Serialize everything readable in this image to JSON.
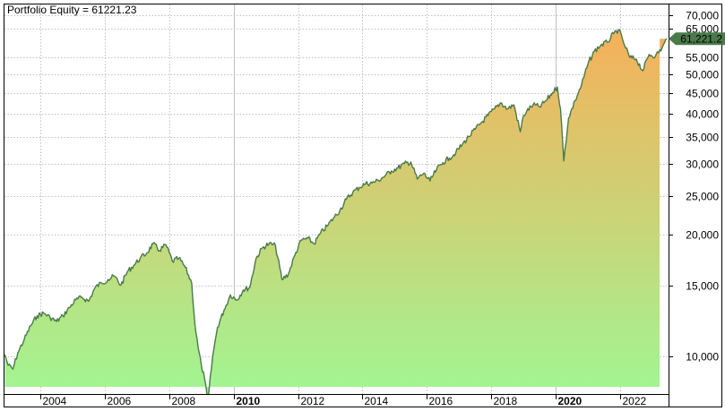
{
  "title": "Portfolio Equity = 61221.23",
  "last_value_label": "61,221.2",
  "colors": {
    "line": "#4a7a4a",
    "fill_top": "#f6b05a",
    "fill_bottom": "#9ff794",
    "grid": "#c0c0c0",
    "frame": "#000000",
    "marker": "#4a7a4a"
  },
  "chart_data": {
    "type": "area",
    "title": "Portfolio Equity = 61221.23",
    "xlabel": "",
    "ylabel": "",
    "y_scale": "log",
    "ylim": [
      8000,
      72000
    ],
    "grid": true,
    "y_ticks": [
      10000,
      15000,
      20000,
      25000,
      30000,
      35000,
      40000,
      45000,
      50000,
      55000,
      65000,
      70000
    ],
    "y_tick_labels": [
      "10,000",
      "15,000",
      "20,000",
      "25,000",
      "30,000",
      "35,000",
      "40,000",
      "45,000",
      "50,000",
      "55,000",
      "65,000",
      "70,000"
    ],
    "x_ticks": [
      2004,
      2006,
      2008,
      2010,
      2012,
      2014,
      2016,
      2018,
      2020,
      2022
    ],
    "x_tick_labels": [
      "2004",
      "2006",
      "2008",
      "2010",
      "2012",
      "2014",
      "2016",
      "2018",
      "2020",
      "2022"
    ],
    "x_bold_ticks": [
      "2010",
      "2020"
    ],
    "last_value": 61221.23,
    "series": [
      {
        "name": "Portfolio Equity",
        "x": [
          2002.9,
          2003.0,
          2003.15,
          2003.3,
          2003.5,
          2003.7,
          2003.9,
          2004.1,
          2004.3,
          2004.5,
          2004.7,
          2004.9,
          2005.1,
          2005.3,
          2005.5,
          2005.7,
          2005.9,
          2006.1,
          2006.3,
          2006.5,
          2006.7,
          2006.9,
          2007.1,
          2007.3,
          2007.5,
          2007.7,
          2007.9,
          2008.1,
          2008.3,
          2008.5,
          2008.7,
          2008.8,
          2008.9,
          2009.0,
          2009.1,
          2009.2,
          2009.35,
          2009.5,
          2009.7,
          2009.9,
          2010.1,
          2010.3,
          2010.5,
          2010.7,
          2010.9,
          2011.1,
          2011.3,
          2011.5,
          2011.7,
          2011.9,
          2012.1,
          2012.3,
          2012.5,
          2012.7,
          2012.9,
          2013.1,
          2013.3,
          2013.5,
          2013.7,
          2013.9,
          2014.1,
          2014.3,
          2014.5,
          2014.7,
          2014.9,
          2015.1,
          2015.3,
          2015.5,
          2015.7,
          2015.9,
          2016.1,
          2016.3,
          2016.5,
          2016.7,
          2016.9,
          2017.1,
          2017.3,
          2017.5,
          2017.7,
          2017.9,
          2018.1,
          2018.3,
          2018.5,
          2018.7,
          2018.9,
          2019.0,
          2019.1,
          2019.3,
          2019.5,
          2019.7,
          2019.9,
          2020.05,
          2020.15,
          2020.25,
          2020.4,
          2020.6,
          2020.8,
          2021.0,
          2021.2,
          2021.4,
          2021.6,
          2021.8,
          2021.95,
          2022.1,
          2022.3,
          2022.5,
          2022.7,
          2022.9,
          2023.1,
          2023.3,
          2023.45
        ],
        "values": [
          10100,
          9500,
          9300,
          10200,
          11000,
          11900,
          12600,
          12800,
          12500,
          12200,
          12600,
          13200,
          13800,
          14000,
          13700,
          14800,
          15200,
          15500,
          15800,
          15000,
          16200,
          16800,
          17500,
          18000,
          19000,
          18300,
          18900,
          17200,
          17500,
          16600,
          15200,
          12000,
          10500,
          9500,
          8800,
          7700,
          10000,
          11800,
          13000,
          14200,
          13800,
          14600,
          14800,
          17500,
          18600,
          19000,
          18800,
          15500,
          16000,
          17800,
          19400,
          19600,
          19000,
          20200,
          21000,
          22000,
          23000,
          24500,
          25500,
          26200,
          26800,
          26900,
          27300,
          28000,
          28800,
          29300,
          30000,
          30300,
          27500,
          28400,
          27200,
          29000,
          30200,
          31000,
          32000,
          33500,
          35000,
          36500,
          38000,
          39500,
          41000,
          42500,
          41000,
          42000,
          36000,
          39500,
          40500,
          42000,
          41500,
          43000,
          45000,
          46500,
          41000,
          30500,
          39000,
          43000,
          47000,
          53000,
          57000,
          59000,
          60000,
          63000,
          64500,
          60000,
          55000,
          54500,
          51000,
          56000,
          55500,
          58000,
          61221
        ]
      }
    ]
  }
}
